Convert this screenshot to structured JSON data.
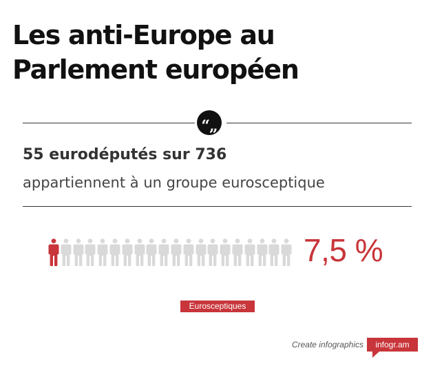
{
  "header": {
    "title_line1": "Les anti-Europe au",
    "title_line2": "Parlement européen"
  },
  "quote": {
    "icon": "quote-icon",
    "symbol": "“„"
  },
  "stat": {
    "headline": "55 eurodéputés sur 736",
    "caption": "appartiennent à un groupe eurosceptique"
  },
  "pictogram": {
    "total_icons": 20,
    "highlighted_icons": 1,
    "highlight_color": "#c8353a",
    "base_color": "#d9d9d9",
    "percentage": "7,5 %"
  },
  "legend": {
    "label": "Eurosceptiques",
    "color": "#c8353a"
  },
  "footer": {
    "credit": "Create infographics",
    "brand": "infogr.am",
    "brand_color": "#c8353a"
  }
}
